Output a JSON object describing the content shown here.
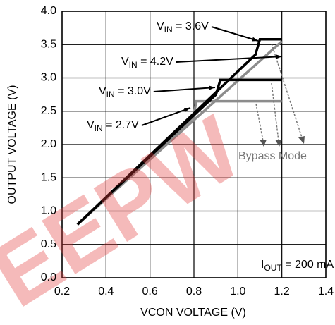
{
  "chart_data": {
    "type": "line",
    "xlabel": "VCON VOLTAGE (V)",
    "ylabel": "OUTPUT VOLTAGE (V)",
    "xlim": [
      0.2,
      1.4
    ],
    "xticks": [
      0.2,
      0.4,
      0.6,
      0.8,
      {
        "value": 1,
        "label": "1.0"
      },
      1.2,
      1.4
    ],
    "ylim": [
      0,
      4
    ],
    "yticks": [
      {
        "value": 0,
        "label": "0.0"
      },
      0.5,
      {
        "value": 1,
        "label": "1.0"
      },
      1.5,
      {
        "value": 2,
        "label": "2.0"
      },
      2.5,
      {
        "value": 3,
        "label": "3.0"
      },
      3.5,
      {
        "value": 4,
        "label": "4.0"
      }
    ],
    "grid": true,
    "series": [
      {
        "label": [
          "V",
          "IN",
          " = 4.2V"
        ],
        "color": "#8c8c8c",
        "x": [
          0.27,
          1.2
        ],
        "values": [
          0.8,
          3.55
        ]
      },
      {
        "label": [
          "V",
          "IN",
          " = 2.7V"
        ],
        "color": "#8c8c8c",
        "x": [
          0.27,
          0.8,
          0.81,
          1.2
        ],
        "values": [
          0.8,
          2.42,
          2.65,
          2.65
        ]
      },
      {
        "label": [
          "V",
          "IN",
          " = 3.0V"
        ],
        "color": "#000000",
        "x": [
          0.27,
          0.9,
          0.92,
          1.2
        ],
        "values": [
          0.8,
          2.75,
          2.97,
          2.97
        ]
      },
      {
        "label": [
          "V",
          "IN",
          " = 3.6V"
        ],
        "color": "#000000",
        "x": [
          0.27,
          1.08,
          1.1,
          1.2
        ],
        "values": [
          0.8,
          3.35,
          3.58,
          3.58
        ]
      }
    ],
    "annotations": {
      "bypass": "Bypass Mode",
      "iout": [
        "I",
        "OUT",
        " = 200 mA"
      ]
    },
    "watermark": "EEPW"
  }
}
